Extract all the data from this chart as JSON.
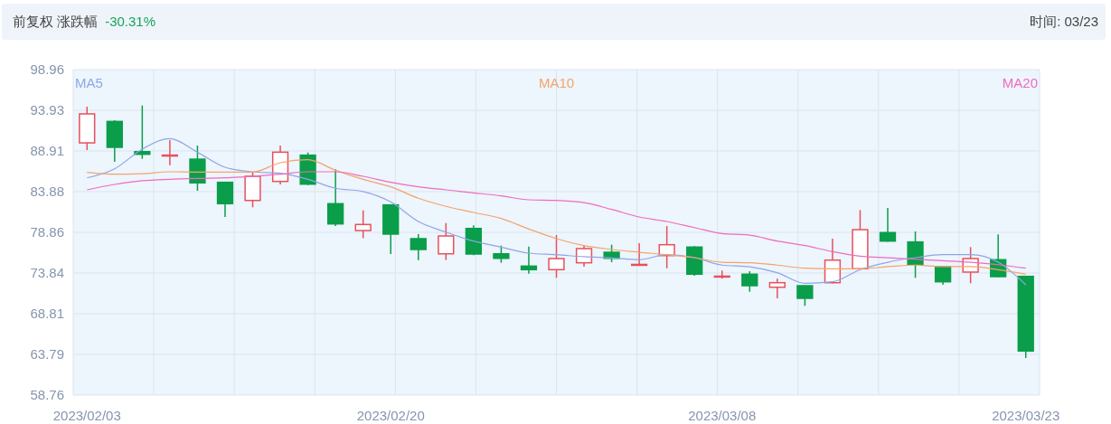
{
  "chart_data": {
    "type": "candlestick",
    "title": "前复权 涨跌幅",
    "subtitle": "-30.31%",
    "annotations": [
      "时间: 03/23"
    ],
    "categories": [
      "2023/02/03",
      null,
      null,
      null,
      null,
      null,
      null,
      null,
      null,
      null,
      null,
      "2023/02/20",
      null,
      null,
      null,
      null,
      null,
      null,
      null,
      null,
      null,
      null,
      null,
      "2023/03/08",
      null,
      null,
      null,
      null,
      null,
      null,
      null,
      null,
      null,
      null,
      "2023/03/23"
    ],
    "ylim": [
      58.76,
      98.96
    ],
    "yticks": [
      58.76,
      63.79,
      68.81,
      73.84,
      78.86,
      83.88,
      88.91,
      93.93,
      98.96
    ],
    "grid": true,
    "legend": "top",
    "series": [
      {
        "ohlc": [
          [
            89.91,
            94.38,
            89.02,
            93.49
          ],
          [
            92.56,
            92.7,
            87.57,
            89.36
          ],
          [
            88.83,
            94.53,
            87.94,
            88.5
          ],
          [
            88.3,
            90.25,
            87.16,
            88.4
          ],
          [
            87.9,
            89.58,
            83.99,
            84.97
          ],
          [
            85.04,
            85.1,
            80.76,
            82.4
          ],
          [
            82.8,
            86.34,
            81.95,
            85.78
          ],
          [
            85.15,
            89.58,
            84.78,
            88.76
          ],
          [
            88.39,
            88.72,
            84.7,
            84.81
          ],
          [
            82.4,
            86.64,
            79.64,
            79.9
          ],
          [
            79.08,
            81.57,
            78.15,
            79.83
          ],
          [
            82.25,
            82.3,
            76.18,
            78.64
          ],
          [
            78.08,
            78.64,
            75.44,
            76.74
          ],
          [
            76.21,
            80.01,
            75.44,
            78.41
          ],
          [
            79.34,
            79.72,
            76.03,
            76.18
          ],
          [
            76.21,
            77.22,
            75.1,
            75.65
          ],
          [
            74.69,
            77.11,
            73.76,
            74.25
          ],
          [
            74.25,
            78.52,
            73.24,
            75.62
          ],
          [
            75.1,
            77.22,
            74.62,
            76.85
          ],
          [
            76.4,
            77.33,
            75.18,
            75.65
          ],
          [
            74.8,
            77.52,
            74.75,
            74.9
          ],
          [
            75.99,
            79.64,
            74.42,
            77.33
          ],
          [
            77.04,
            77.15,
            73.5,
            73.69
          ],
          [
            73.35,
            74.14,
            73.13,
            73.45
          ],
          [
            73.69,
            74.06,
            71.52,
            72.27
          ],
          [
            72.08,
            73.13,
            70.71,
            72.64
          ],
          [
            72.27,
            72.3,
            69.78,
            70.71
          ],
          [
            72.64,
            78.08,
            72.55,
            75.43
          ],
          [
            74.36,
            81.61,
            74.3,
            79.19
          ],
          [
            78.83,
            81.87,
            77.7,
            77.78
          ],
          [
            77.67,
            78.97,
            73.24,
            74.92
          ],
          [
            74.62,
            74.73,
            72.38,
            72.75
          ],
          [
            73.95,
            77.04,
            72.57,
            75.62
          ],
          [
            75.48,
            78.6,
            73.3,
            73.39
          ],
          [
            73.42,
            73.5,
            63.34,
            64.2
          ]
        ],
        "colors": [
          "#e8505b",
          "#0a9e4a",
          "#0a9e4a",
          "#e8505b",
          "#0a9e4a",
          "#0a9e4a",
          "#e8505b",
          "#e8505b",
          "#0a9e4a",
          "#0a9e4a",
          "#e8505b",
          "#0a9e4a",
          "#0a9e4a",
          "#e8505b",
          "#0a9e4a",
          "#0a9e4a",
          "#0a9e4a",
          "#e8505b",
          "#e8505b",
          "#0a9e4a",
          "#e8505b",
          "#e8505b",
          "#0a9e4a",
          "#e8505b",
          "#0a9e4a",
          "#e8505b",
          "#0a9e4a",
          "#e8505b",
          "#e8505b",
          "#0a9e4a",
          "#0a9e4a",
          "#0a9e4a",
          "#e8505b",
          "#0a9e4a",
          "#0a9e4a"
        ]
      },
      {
        "type": "line",
        "name": "MA5",
        "color": "#8ea6e6",
        "values": [
          85.59,
          86.71,
          89.14,
          90.44,
          88.76,
          86.9,
          86.34,
          86.15,
          85.41,
          84.3,
          83.9,
          82.62,
          80.2,
          78.89,
          77.78,
          77.04,
          76.29,
          76.1,
          75.85,
          75.7,
          75.48,
          76.1,
          75.73,
          74.81,
          74.6,
          73.87,
          72.57,
          72.75,
          74.25,
          75.17,
          75.73,
          76.1,
          76.1,
          75.17,
          72.38
        ]
      },
      {
        "type": "line",
        "name": "MA10",
        "color": "#f5a36b",
        "values": [
          86.27,
          86.04,
          86.1,
          86.34,
          86.3,
          86.3,
          86.3,
          87.46,
          87.83,
          86.53,
          85.41,
          84.48,
          83.07,
          82.07,
          81.32,
          80.57,
          79.27,
          78.08,
          77.22,
          76.74,
          76.4,
          76.1,
          75.73,
          75.17,
          75.1,
          74.81,
          74.43,
          74.36,
          74.36,
          74.62,
          74.81,
          74.62,
          74.62,
          74.25,
          73.69
        ]
      },
      {
        "type": "line",
        "name": "MA20",
        "color": "#f06bbd",
        "values": [
          84.11,
          84.78,
          85.23,
          85.41,
          85.52,
          85.6,
          85.78,
          86.04,
          86.34,
          86.34,
          85.78,
          85.04,
          84.48,
          84.11,
          83.74,
          83.36,
          82.88,
          82.8,
          82.54,
          81.69,
          80.76,
          80.2,
          79.45,
          78.71,
          78.52,
          77.78,
          77.22,
          76.48,
          75.92,
          75.73,
          75.54,
          75.36,
          75.17,
          74.87,
          74.43
        ]
      }
    ]
  }
}
